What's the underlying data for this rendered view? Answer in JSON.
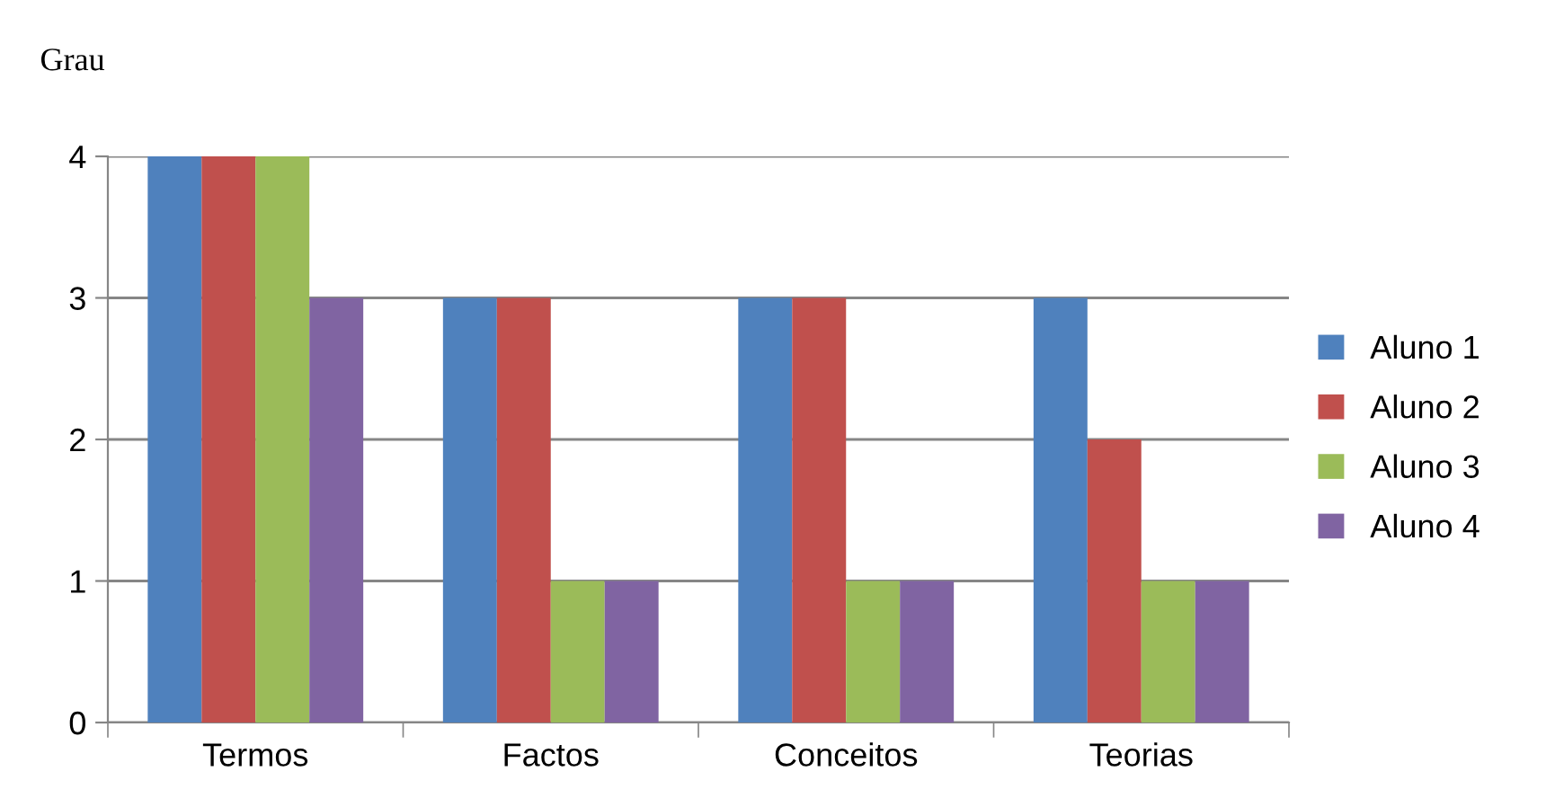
{
  "chart_data": {
    "type": "bar",
    "ylabel": "Grau",
    "categories": [
      "Termos",
      "Factos",
      "Conceitos",
      "Teorias"
    ],
    "series": [
      {
        "name": "Aluno 1",
        "color": "#4f81bd",
        "values": [
          4,
          3,
          3,
          3
        ]
      },
      {
        "name": "Aluno 2",
        "color": "#c0504d",
        "values": [
          4,
          3,
          3,
          2
        ]
      },
      {
        "name": "Aluno 3",
        "color": "#9bbb59",
        "values": [
          4,
          1,
          1,
          1
        ]
      },
      {
        "name": "Aluno 4",
        "color": "#8064a2",
        "values": [
          3,
          1,
          1,
          1
        ]
      }
    ],
    "ylim": [
      0,
      4
    ],
    "yticks": [
      0,
      1,
      2,
      3,
      4
    ],
    "grid": "y",
    "legend": "right"
  }
}
